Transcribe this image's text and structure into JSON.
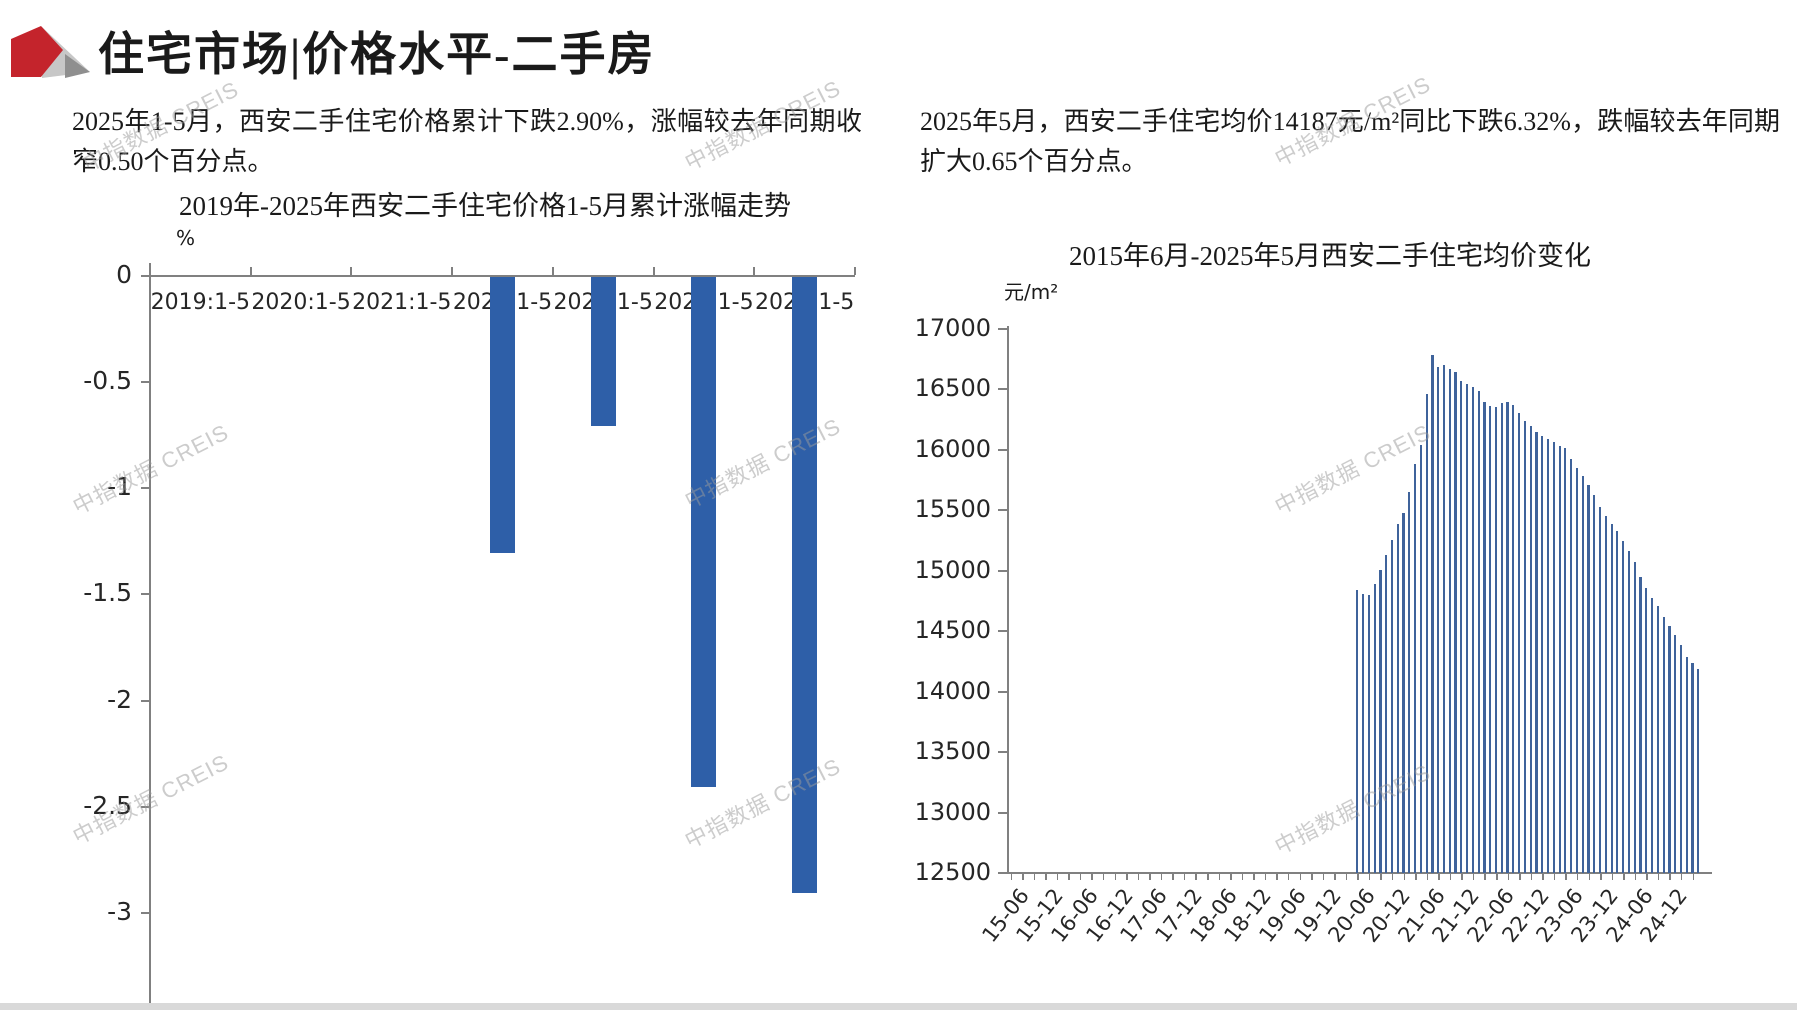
{
  "header": {
    "title": "住宅市场|价格水平-二手房",
    "logo": "creis-mark"
  },
  "watermark": {
    "text": "中指数据 CREIS"
  },
  "left_panel": {
    "paragraph": "2025年1-5月，西安二手住宅价格累计下跌2.90%，涨幅较去年同期收窄0.50个百分点。"
  },
  "right_panel": {
    "paragraph": "2025年5月，西安二手住宅均价14187元/m²同比下跌6.32%，跌幅较去年同期扩大0.65个百分点。"
  },
  "colors": {
    "left_bar": "#2e5fa8",
    "right_bar": "#3f639b",
    "axis": "#808080",
    "logo_red": "#c4242c",
    "logo_gray_light": "#c7c7c7",
    "logo_gray_dark": "#8f8f8f"
  },
  "chart_data": [
    {
      "id": "cumulative-change",
      "type": "bar",
      "title": "2019年-2025年西安二手住宅价格1-5月累计涨幅走势",
      "ylabel": "%",
      "categories": [
        "2019:1-5",
        "2020:1-5",
        "2021:1-5",
        "2022:1-5",
        "2023:1-5",
        "2024:1-5",
        "2025:1-5"
      ],
      "values": [
        0,
        0,
        0,
        -1.3,
        -0.7,
        -2.4,
        -2.9
      ],
      "y_ticks": [
        0,
        -0.5,
        -1,
        -1.5,
        -2,
        -2.5,
        -3
      ],
      "ylim": [
        -3.3,
        0
      ],
      "grid": false,
      "legend": "none"
    },
    {
      "id": "avg-price",
      "type": "bar",
      "title": "2015年6月-2025年5月西安二手住宅均价变化",
      "ylabel": "元/m²",
      "x_axis_start": "2015-06",
      "x_axis_end": "2025-05",
      "months_total": 120,
      "x_tick_labels": [
        "15-06",
        "15-12",
        "16-06",
        "16-12",
        "17-06",
        "17-12",
        "18-06",
        "18-12",
        "19-06",
        "19-12",
        "20-06",
        "20-12",
        "21-06",
        "21-12",
        "22-06",
        "22-12",
        "23-06",
        "23-12",
        "24-06",
        "24-12"
      ],
      "x_label_step_months": 6,
      "first_data_month": "2020-06",
      "first_data_month_index": 60,
      "values": [
        14841,
        14808,
        14799,
        14891,
        15004,
        15133,
        15258,
        15383,
        15475,
        15650,
        15883,
        16040,
        16465,
        16782,
        16682,
        16699,
        16665,
        16648,
        16573,
        16548,
        16523,
        16490,
        16399,
        16365,
        16352,
        16387,
        16400,
        16371,
        16304,
        16240,
        16199,
        16150,
        16116,
        16094,
        16066,
        16033,
        16016,
        15924,
        15849,
        15782,
        15707,
        15624,
        15524,
        15457,
        15391,
        15332,
        15249,
        15166,
        15074,
        14949,
        14858,
        14774,
        14708,
        14616,
        14541,
        14466,
        14383,
        14283,
        14235,
        14187
      ],
      "last_value_label": "14187",
      "y_ticks": [
        17000,
        16500,
        16000,
        15500,
        15000,
        14500,
        14000,
        13500,
        13000,
        12500
      ],
      "ylim": [
        12500,
        17000
      ],
      "grid": false,
      "legend": "none"
    }
  ]
}
